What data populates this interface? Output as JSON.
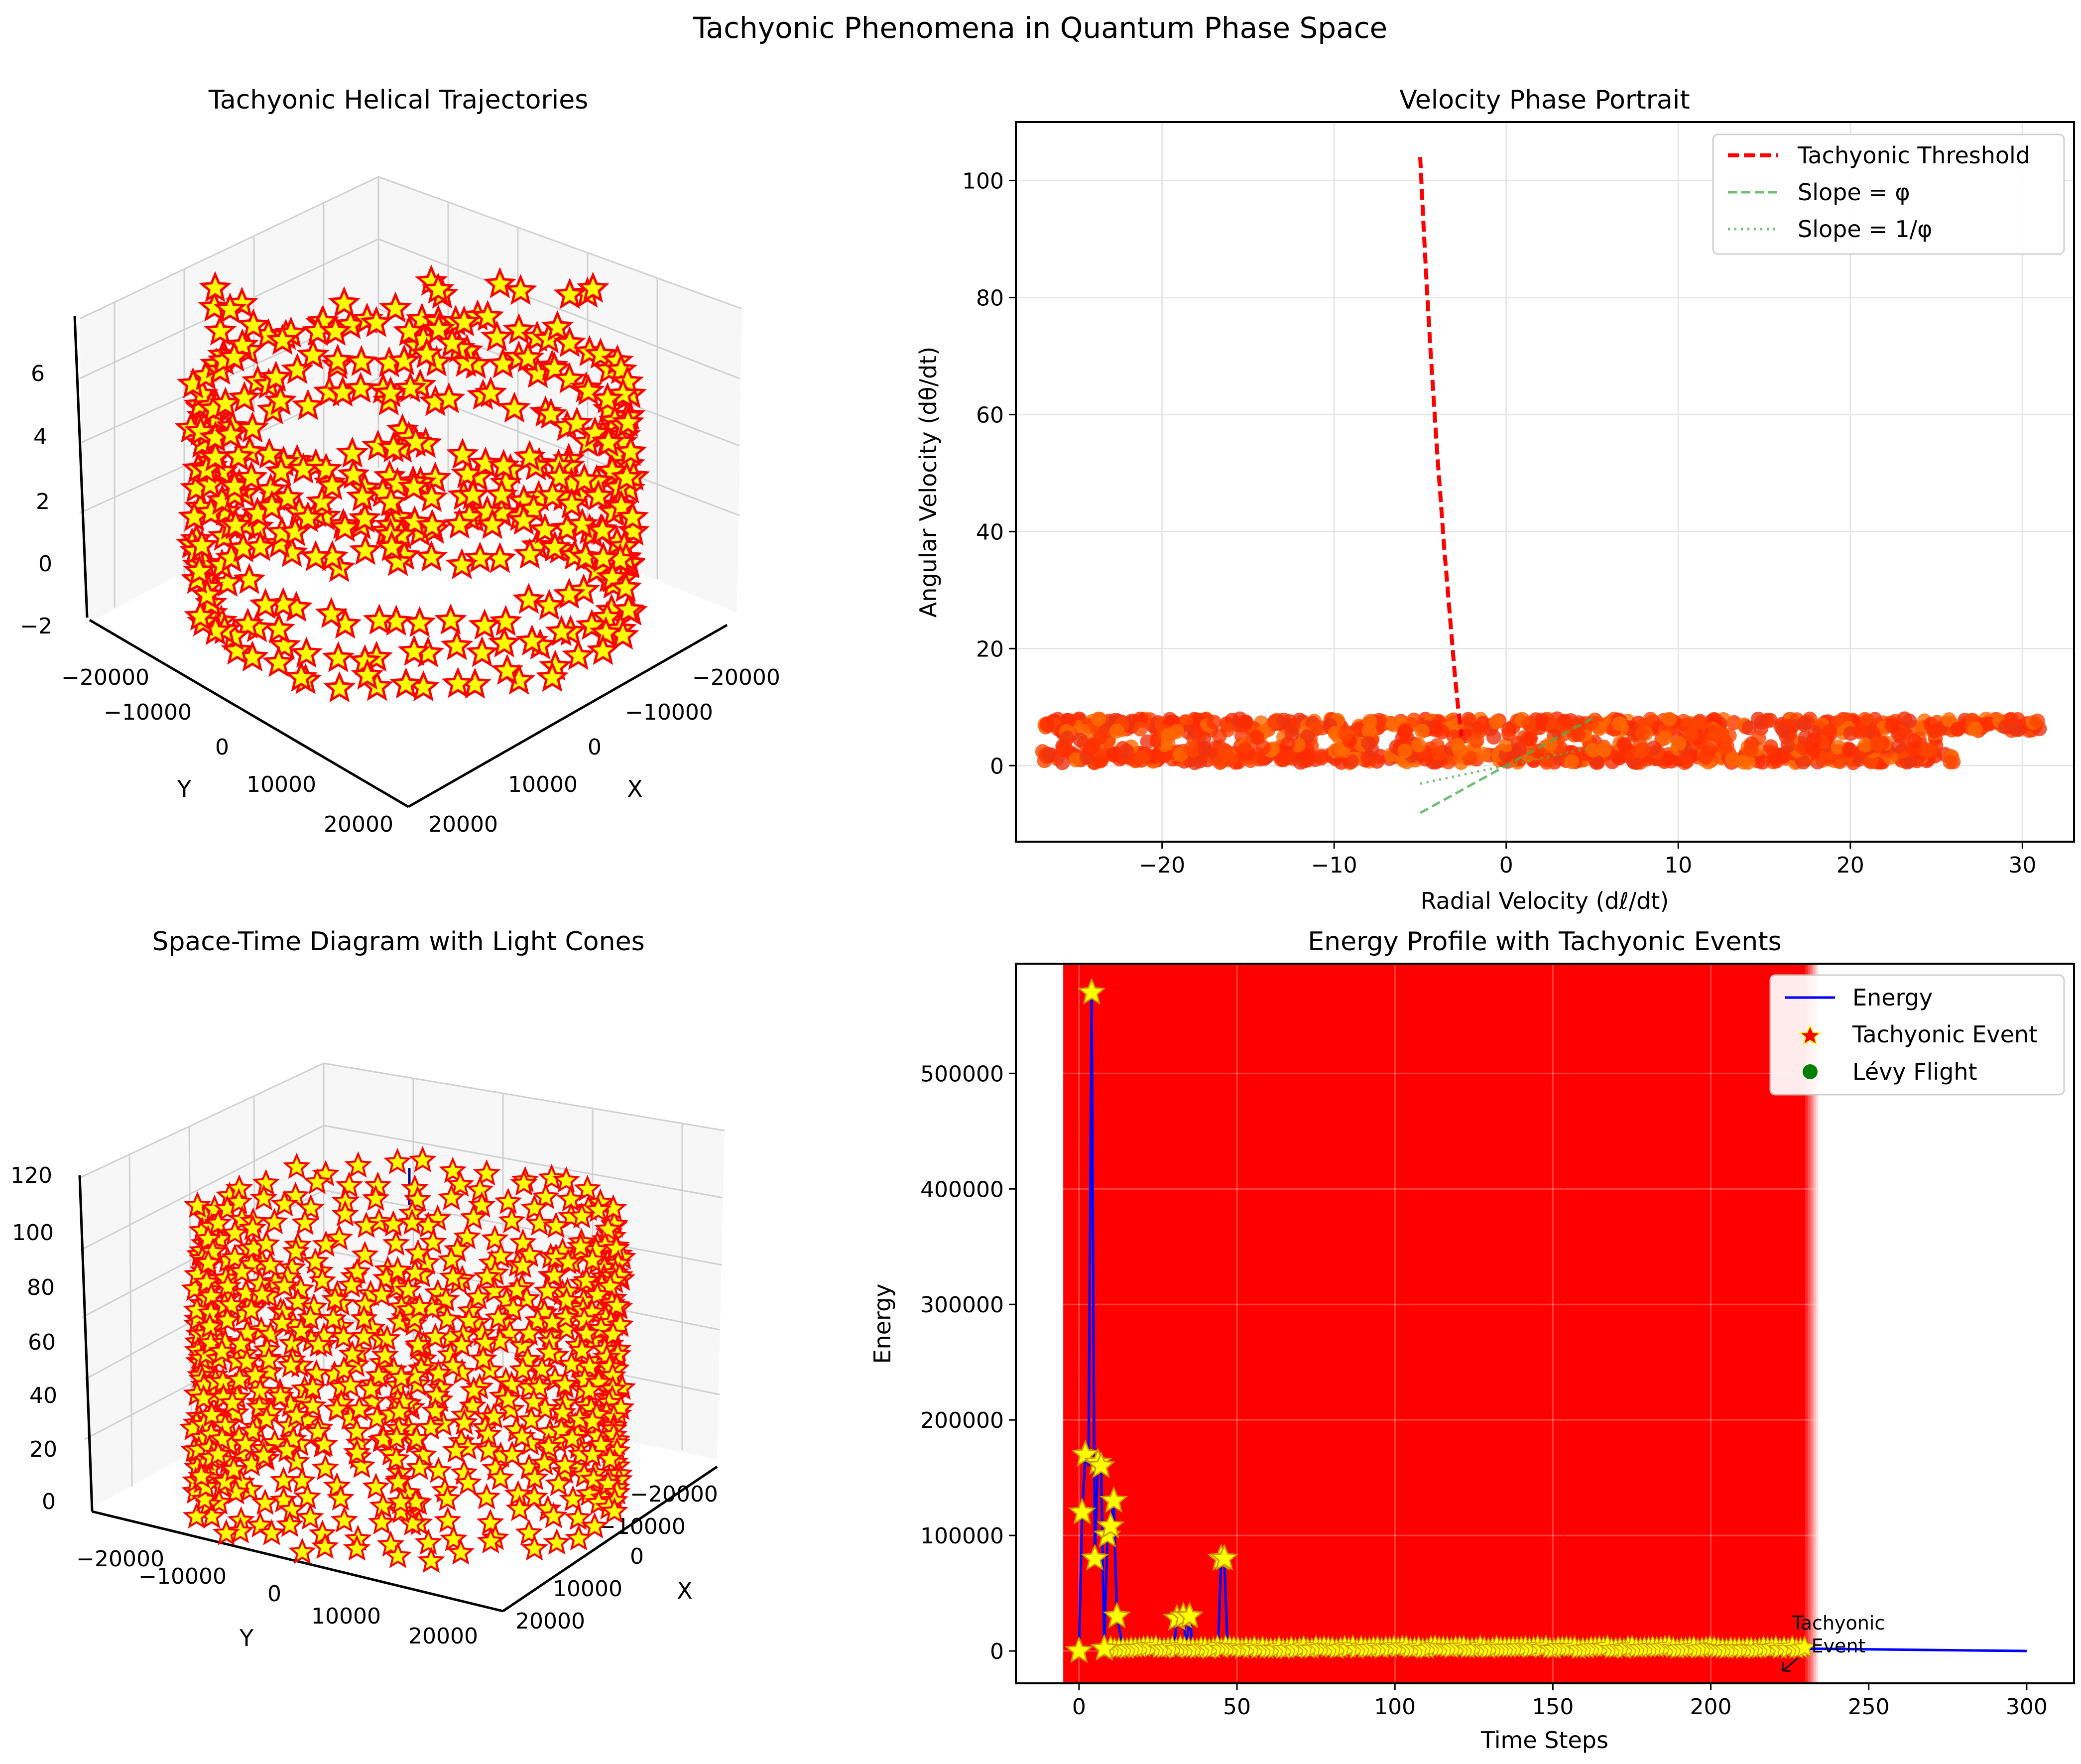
{
  "figure": {
    "title": "Tachyonic Phenomena in Quantum Phase Space"
  },
  "colors": {
    "star_fill": "#ffff00",
    "star_edge": "#ff0000",
    "threshold": "#ff0000",
    "phi_line": "#4caf50",
    "energy_line": "#0000ff",
    "span": "#ff0000",
    "levy": "#008000",
    "grid": "#e5e5e5",
    "pane": "#f2f2f2"
  },
  "chart_data": [
    {
      "type": "scatter3d",
      "title": "Tachyonic Helical Trajectories",
      "xlabel": "X",
      "ylabel": "Y",
      "zlabel": "",
      "x_ticks": [
        "20000",
        "10000",
        "0",
        "−10000",
        "−20000"
      ],
      "y_ticks": [
        "−20000",
        "−10000",
        "0",
        "10000",
        "20000"
      ],
      "z_ticks": [
        "−2",
        "0",
        "2",
        "4",
        "6"
      ],
      "xlim": [
        -25000,
        25000
      ],
      "ylim": [
        -25000,
        25000
      ],
      "zlim": [
        -2,
        7.5
      ],
      "marker": "star",
      "description_points": 900
    },
    {
      "type": "scatter",
      "title": "Velocity Phase Portrait",
      "xlabel": "Radial Velocity (dℓ/dt)",
      "ylabel": "Angular Velocity (dθ/dt)",
      "xlim": [
        -28.5,
        33.0
      ],
      "ylim": [
        -13,
        110
      ],
      "x_ticks": [
        -20,
        -10,
        0,
        10,
        20,
        30
      ],
      "x_tick_labels": [
        "−20",
        "−10",
        "0",
        "10",
        "20",
        "30"
      ],
      "y_ticks": [
        0,
        20,
        40,
        60,
        80,
        100
      ],
      "y_tick_labels": [
        "0",
        "20",
        "40",
        "60",
        "80",
        "100"
      ],
      "grid": true,
      "legend_position": "top-right",
      "series": [
        {
          "name": "Tachyonic Threshold",
          "style": "dashed",
          "color": "#ff0000",
          "x": [
            -5.0,
            -4.8,
            -4.6,
            -4.4,
            -4.2,
            -4.0,
            -3.8,
            -3.6,
            -3.4,
            -3.2,
            -3.0,
            -2.8,
            -2.6
          ],
          "y": [
            104,
            92,
            81,
            71,
            62,
            53,
            45,
            37,
            30,
            23,
            16,
            10,
            5
          ]
        },
        {
          "name": "Slope = φ",
          "style": "dashed",
          "color": "#4caf50",
          "x": [
            -5,
            5
          ],
          "y": [
            -8.09,
            8.09
          ]
        },
        {
          "name": "Slope = 1/φ",
          "style": "dotted",
          "color": "#4caf50",
          "x": [
            -5,
            5
          ],
          "y": [
            -3.09,
            3.09
          ]
        }
      ],
      "scatter_bands": [
        {
          "x_range": [
            -27,
            31
          ],
          "y_range": [
            6,
            8
          ]
        },
        {
          "x_range": [
            -27,
            26
          ],
          "y_range": [
            0.5,
            2.5
          ]
        },
        {
          "x_range": [
            -26,
            25
          ],
          "y_range": [
            2.5,
            6
          ]
        }
      ]
    },
    {
      "type": "scatter3d",
      "title": "Space-Time Diagram with Light Cones",
      "xlabel": "X",
      "ylabel": "Y",
      "zlabel": "",
      "x_ticks": [
        "−20000",
        "−10000",
        "0",
        "10000",
        "20000"
      ],
      "y_ticks": [
        "−20000",
        "−10000",
        "0",
        "10000",
        "20000"
      ],
      "z_ticks": [
        "0",
        "20",
        "40",
        "60",
        "80",
        "100",
        "120"
      ],
      "zlim": [
        0,
        125
      ],
      "marker": "star"
    },
    {
      "type": "line",
      "title": "Energy Profile with Tachyonic Events",
      "xlabel": "Time Steps",
      "ylabel": "Energy",
      "xlim": [
        -20,
        315
      ],
      "ylim": [
        -28000,
        595000
      ],
      "x_ticks": [
        0,
        50,
        100,
        150,
        200,
        250,
        300
      ],
      "x_tick_labels": [
        "0",
        "50",
        "100",
        "150",
        "200",
        "250",
        "300"
      ],
      "y_ticks": [
        0,
        100000,
        200000,
        300000,
        400000,
        500000
      ],
      "y_tick_labels": [
        "0",
        "100000",
        "200000",
        "300000",
        "400000",
        "500000"
      ],
      "grid": true,
      "legend_position": "top-right",
      "legend": [
        "Energy",
        "Tachyonic Event",
        "Lévy Flight"
      ],
      "span": {
        "x_range": [
          -5,
          230
        ]
      },
      "series": [
        {
          "name": "Energy",
          "color": "#0000ff",
          "x": [
            0,
            1,
            2,
            3,
            4,
            5,
            6,
            7,
            8,
            9,
            10,
            11,
            12,
            14,
            30,
            31,
            33,
            34,
            35,
            36,
            44,
            45,
            46,
            47,
            100,
            200,
            230,
            300
          ],
          "y": [
            2000,
            120000,
            170000,
            160000,
            570000,
            80000,
            163000,
            160000,
            2000,
            100000,
            108000,
            130000,
            30000,
            2000,
            2000,
            28000,
            30000,
            2000,
            30000,
            2000,
            2000,
            80000,
            80000,
            2000,
            2000,
            2000,
            2000,
            0
          ]
        }
      ],
      "events": {
        "name": "Tachyonic Event",
        "x": [
          0,
          1,
          2,
          4,
          5,
          6,
          7,
          8,
          9,
          10,
          11,
          12,
          31,
          33,
          35,
          45,
          46
        ],
        "y": [
          0,
          120000,
          170000,
          570000,
          80000,
          163000,
          160000,
          2000,
          100000,
          108000,
          130000,
          30000,
          28000,
          30000,
          30000,
          80000,
          80000
        ],
        "low_range": [
          10,
          230
        ]
      },
      "annotation": {
        "text_line1": "Tachyonic",
        "text_line2": "Event",
        "x": 230,
        "y": 0
      }
    }
  ]
}
